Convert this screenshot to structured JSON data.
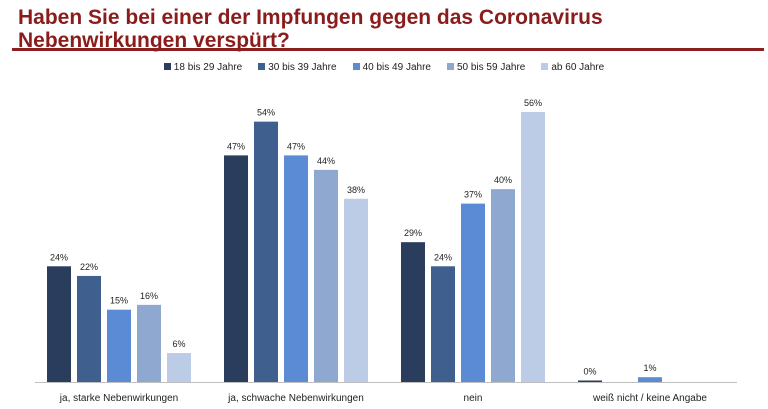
{
  "chart_data": {
    "type": "bar",
    "title": "Haben Sie bei einer der Impfungen gegen das Coronavirus Nebenwirkungen verspürt?",
    "categories": [
      "ja, starke Nebenwirkungen",
      "ja, schwache Nebenwirkungen",
      "nein",
      "weiß nicht / keine Angabe"
    ],
    "series": [
      {
        "name": "18 bis 29 Jahre",
        "color": "#2b3d5c",
        "values": [
          24,
          47,
          29,
          0
        ]
      },
      {
        "name": "30 bis 39 Jahre",
        "color": "#3f5f8f",
        "values": [
          22,
          54,
          24,
          null
        ]
      },
      {
        "name": "40 bis 49 Jahre",
        "color": "#5b8bd4",
        "values": [
          15,
          47,
          37,
          1
        ]
      },
      {
        "name": "50 bis 59 Jahre",
        "color": "#8fa8d0",
        "values": [
          16,
          44,
          40,
          null
        ]
      },
      {
        "name": "ab 60 Jahre",
        "color": "#bccbe6",
        "values": [
          6,
          38,
          56,
          null
        ]
      }
    ],
    "value_suffix": "%",
    "ylim": [
      0,
      56
    ],
    "grid": false,
    "legend": "top"
  }
}
